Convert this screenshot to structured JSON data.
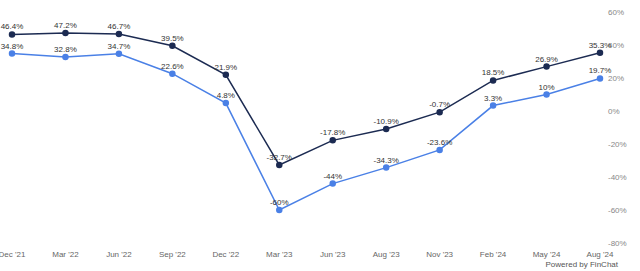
{
  "chart_data": {
    "type": "line",
    "categories": [
      "Dec '21",
      "Mar '22",
      "Jun '22",
      "Sep '22",
      "Dec '22",
      "Mar '23",
      "Jun '23",
      "Aug '23",
      "Nov '23",
      "Feb '24",
      "May '24",
      "Aug '24"
    ],
    "series": [
      {
        "color": "#1c2b52",
        "marker": "circle",
        "values": [
          46.4,
          47.2,
          46.7,
          39.5,
          21.9,
          -32.7,
          -17.8,
          -10.9,
          -0.7,
          18.5,
          26.9,
          35.3
        ],
        "value_labels": [
          "46.4%",
          "47.2%",
          "46.7%",
          "39.5%",
          "21.9%",
          "-32.7%",
          "-17.8%",
          "-10.9%",
          "-0.7%",
          "18.5%",
          "26.9%",
          "35.3%"
        ]
      },
      {
        "color": "#4a80e6",
        "marker": "circle",
        "values": [
          34.8,
          32.8,
          34.7,
          22.6,
          4.8,
          -60,
          -44,
          -34.3,
          -23.6,
          3.3,
          10,
          19.7
        ],
        "value_labels": [
          "34.8%",
          "32.8%",
          "34.7%",
          "22.6%",
          "4.8%",
          "-60%",
          "-44%",
          "-34.3%",
          "-23.6%",
          "3.3%",
          "10%",
          "19.7%"
        ]
      }
    ],
    "ylim": [
      -80,
      60
    ],
    "yticks": [
      {
        "value": -80,
        "label": "-80%"
      },
      {
        "value": -60,
        "label": "-60%"
      },
      {
        "value": -40,
        "label": "-40%"
      },
      {
        "value": -20,
        "label": "-20%"
      },
      {
        "value": 0,
        "label": "0%"
      },
      {
        "value": 20,
        "label": "20%"
      },
      {
        "value": 40,
        "label": "40%"
      },
      {
        "value": 60,
        "label": "60%"
      }
    ],
    "data_labels": true,
    "grid": false,
    "annotations": [
      "Powered by FinChat"
    ]
  }
}
